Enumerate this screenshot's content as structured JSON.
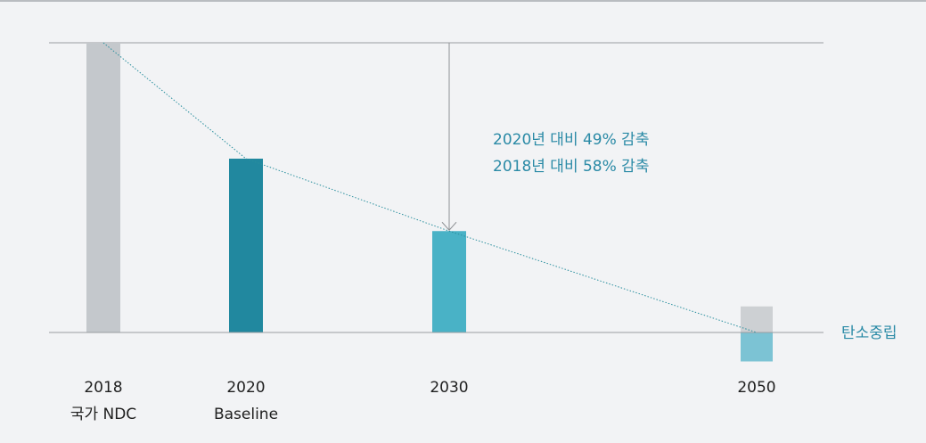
{
  "chart_data": {
    "type": "bar",
    "title": "",
    "xlabel": "",
    "ylabel": "",
    "ylim": [
      0,
      100
    ],
    "categories": [
      {
        "year": "2018",
        "sub": "국가 NDC"
      },
      {
        "year": "2020",
        "sub": "Baseline"
      },
      {
        "year": "2030",
        "sub": ""
      },
      {
        "year": "2050",
        "sub": ""
      }
    ],
    "values": [
      100,
      60,
      35,
      0
    ],
    "net_zero": {
      "emission_above_zero": 9,
      "absorption_below_zero": -10,
      "label": "탄소중립"
    },
    "annotations": [
      "2020년 대비 49% 감축",
      "2018년 대비 58% 감축"
    ],
    "trend_line": true,
    "colors": {
      "2018": "#c4c8cc",
      "2020": "#21889f",
      "2030": "#49b2c6",
      "2050_above": "#cdd0d3",
      "2050_below": "#7cc3d4",
      "accent_text": "#2a8aa6",
      "gridline": "#9a9da1",
      "trend": "#2a8f9e"
    }
  }
}
